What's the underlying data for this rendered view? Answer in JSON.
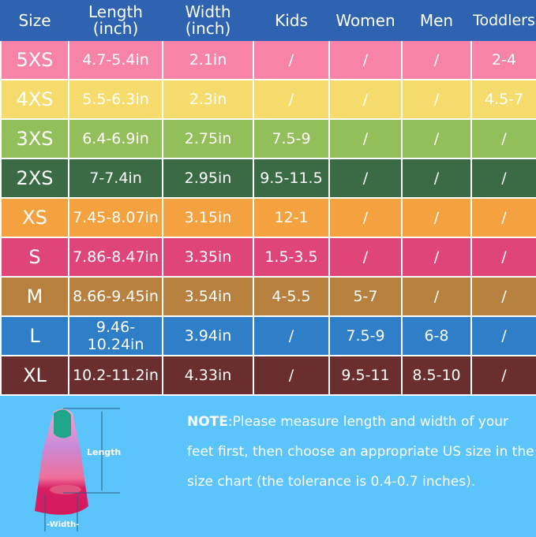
{
  "headers": [
    "Size",
    "Length\n(inch)",
    "Width\n(inch)",
    "Kids",
    "Women",
    "Men",
    "Toddlers"
  ],
  "header_lines": {
    "length": [
      "Length",
      "(inch)"
    ],
    "width": [
      "Width",
      "(inch)"
    ]
  },
  "header_color": "#2d63b0",
  "rows": [
    {
      "color": "#f784a8",
      "cells": [
        "5XS",
        "4.7-5.4in",
        "2.1in",
        "/",
        "/",
        "/",
        "2-4"
      ]
    },
    {
      "color": "#f5dc6c",
      "cells": [
        "4XS",
        "5.5-6.3in",
        "2.3in",
        "/",
        "/",
        "/",
        "4.5-7"
      ]
    },
    {
      "color": "#93bf5a",
      "cells": [
        "3XS",
        "6.4-6.9in",
        "2.75in",
        "7.5-9",
        "/",
        "/",
        "/"
      ]
    },
    {
      "color": "#3b6b45",
      "cells": [
        "2XS",
        "7-7.4in",
        "2.95in",
        "9.5-11.5",
        "/",
        "/",
        "/"
      ]
    },
    {
      "color": "#f4a23f",
      "cells": [
        "XS",
        "7.45-8.07in",
        "3.15in",
        "12-1",
        "/",
        "/",
        "/"
      ]
    },
    {
      "color": "#e0457a",
      "cells": [
        "S",
        "7.86-8.47in",
        "3.35in",
        "1.5-3.5",
        "/",
        "/",
        "/"
      ]
    },
    {
      "color": "#b8803e",
      "cells": [
        "M",
        "8.66-9.45in",
        "3.54in",
        "4-5.5",
        "5-7",
        "/",
        "/"
      ]
    },
    {
      "color": "#2e7fc8",
      "cells": [
        "L",
        "9.46-10.24in",
        "3.94in",
        "/",
        "7.5-9",
        "6-8",
        "/"
      ]
    },
    {
      "color": "#6b2e2e",
      "cells": [
        "XL",
        "10.2-11.2in",
        "4.33in",
        "/",
        "9.5-11",
        "8.5-10",
        "/"
      ]
    }
  ],
  "diagram": {
    "length_label": "Length",
    "width_label": "-Width-"
  },
  "note": {
    "label": "NOTE",
    "text": ":Please measure length and width of your feet first, then choose an appropriate US size in the size chart (the tolerance is 0.4-0.7 inches)."
  }
}
